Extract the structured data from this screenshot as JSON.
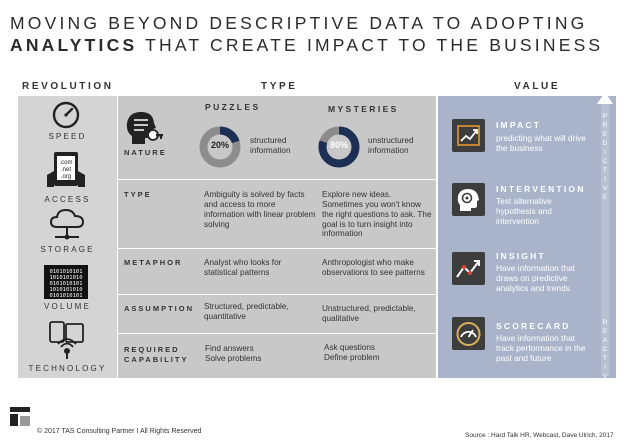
{
  "title": {
    "line1": "MOVING BEYOND DESCRIPTIVE DATA TO ADOPTING",
    "line2_bold": "ANALYTICS",
    "line2_rest": " THAT CREATE IMPACT TO THE BUSINESS"
  },
  "headers": {
    "revolution": "REVOLUTION",
    "type": "TYPE",
    "value": "VALUE"
  },
  "revolution": [
    "SPEED",
    "ACCESS",
    "STORAGE",
    "VOLUME",
    "TECHNOLOGY"
  ],
  "type_columns": {
    "puzzles": "PUZZLES",
    "mysteries": "MYSTERIES"
  },
  "nature": {
    "label": "NATURE",
    "puzzles_pct": "20%",
    "puzzles_value": 0.2,
    "puzzles_text": "structured information",
    "mysteries_pct": "80%",
    "mysteries_value": 0.8,
    "mysteries_text": "unstructured information"
  },
  "rows": [
    {
      "label": "TYPE",
      "puzzles": "Ambiguity is solved by facts and access to more information with linear problem solving",
      "mysteries": "Explore new ideas. Sometimes you won't know the right questions to ask. The goal is to turn insight into information"
    },
    {
      "label": "METAPHOR",
      "puzzles": "Analyst who looks for statistical patterns",
      "mysteries": "Anthropologist who make observations to see patterns"
    },
    {
      "label": "ASSUMPTION",
      "puzzles": "Structured, predictable, quantitative",
      "mysteries": "Unstructured, predictable, qualitative"
    },
    {
      "label1": "REQUIRED",
      "label2": "CAPABILITY",
      "puzzles1": "Find answers",
      "puzzles2": "Solve problems",
      "mysteries1": "Ask questions",
      "mysteries2": "Define problem"
    }
  ],
  "value": [
    {
      "title": "IMPACT",
      "desc": "predicting what will drive the business",
      "icon": "growth-chart-icon"
    },
    {
      "title": "INTERVENTION",
      "desc": "Test alternative hypothesis and intervention",
      "icon": "thinking-head-icon"
    },
    {
      "title": "INSIGHT",
      "desc": "Have information that draws on predictive analytics and trends",
      "icon": "insight-trend-icon"
    },
    {
      "title": "SCORECARD",
      "desc": "Have information that track performance in the past and future",
      "icon": "scorecard-gauge-icon"
    }
  ],
  "axis": {
    "top": "PREDICTIVE",
    "bottom": "REACTIVE"
  },
  "footer": "© 2017 TAS Consulting Partner  I  All Rights Reserved",
  "source": "Source : Hard Talk HR, Webcast, Dave Ulrich, 2017",
  "colors": {
    "accent_navy": "#1d2f55",
    "donut_grey": "#8c8c8c",
    "value_panel": "#a9b3c9"
  }
}
